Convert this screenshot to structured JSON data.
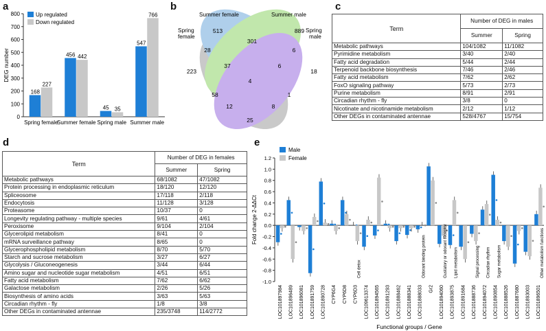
{
  "panel_labels": {
    "a": "a",
    "b": "b",
    "c": "c",
    "d": "d",
    "e": "e"
  },
  "chart_data": [
    {
      "type": "bar",
      "panel": "a",
      "ylabel": "DEG number",
      "xlabel": "",
      "ylim": [
        0,
        800
      ],
      "yticks": [
        0,
        100,
        200,
        300,
        400,
        500,
        600,
        700,
        800
      ],
      "categories": [
        "Spring female",
        "Summer female",
        "Spring male",
        "Summer male"
      ],
      "series": [
        {
          "name": "Up regulated",
          "color": "#1e7fd6",
          "values": [
            168,
            456,
            45,
            547
          ]
        },
        {
          "name": "Down regulated",
          "color": "#c8c8c8",
          "values": [
            227,
            442,
            35,
            766
          ]
        }
      ]
    },
    {
      "type": "bar",
      "panel": "e",
      "ylabel": "Fold change 2-ΔΔCt",
      "xlabel": "Functional groups / Gene",
      "ylim": [
        -1.0,
        1.2
      ],
      "yticks": [
        -1.0,
        -0.8,
        -0.6,
        -0.4,
        -0.2,
        0.0,
        0.2,
        0.4,
        0.6,
        0.8,
        1.0,
        1.2
      ],
      "categories": [
        "LOC101897984",
        "LOC101896489",
        "LOC101896081",
        "LOC101891759",
        "LOC101890728",
        "CYP6G4",
        "CYP6D8",
        "CYP6D3",
        "LOC109613374",
        "LOC101894565",
        "LOC101891293",
        "LOC101888462",
        "LOC101888341",
        "LOC101888033",
        "Gr2",
        "LOC101894060",
        "LOC101893875",
        "LOC101891684",
        "LOC101888736",
        "LOC101894072",
        "LOC101890854",
        "LOC101888526",
        "LOC101887680",
        "LOC101893003",
        "LOC101896501"
      ],
      "series": [
        {
          "name": "Male",
          "color": "#1e7fd6",
          "values": [
            -0.3,
            0.45,
            -0.03,
            -0.85,
            0.78,
            0.03,
            0.45,
            0.0,
            -0.38,
            -0.18,
            0.03,
            -0.28,
            -0.17,
            -0.07,
            1.05,
            -0.33,
            -0.35,
            -0.38,
            -0.15,
            0.28,
            0.9,
            -0.28,
            -0.68,
            -0.47,
            0.2
          ]
        },
        {
          "name": "Female",
          "color": "#c8c8c8",
          "values": [
            -0.05,
            -0.6,
            -0.1,
            0.15,
            0.05,
            -0.1,
            0.2,
            -0.28,
            0.1,
            0.85,
            -0.05,
            -0.05,
            -0.05,
            0.0,
            0.8,
            -0.18,
            0.45,
            -0.6,
            -0.28,
            0.38,
            0.1,
            -0.38,
            -0.1,
            -0.55,
            0.67
          ]
        }
      ],
      "annotations": [
        {
          "text": "Cell detox",
          "after_index": 7
        },
        {
          "text": "Odorant binding protein",
          "after_index": 13
        },
        {
          "text": "Gustatory or odorant receptor",
          "after_index": 15
        },
        {
          "text": "Lipid metabolism",
          "after_index": 16
        },
        {
          "text": "Signal processing",
          "after_index": 18
        },
        {
          "text": "Circadian rhythm",
          "after_index": 19
        },
        {
          "text": "Sugar metabolism",
          "after_index": 20
        },
        {
          "text": "Other metabolism functions",
          "after_index": 24
        }
      ]
    }
  ],
  "venn": {
    "labels": {
      "spring_female": "Spring female",
      "summer_female": "Summer female",
      "summer_male": "Summer male",
      "spring_male": "Spring male"
    },
    "counts": [
      "513",
      "889",
      "223",
      "18",
      "301",
      "28",
      "6",
      "37",
      "6",
      "58",
      "4",
      "1",
      "12",
      "8",
      "25"
    ]
  },
  "table_c": {
    "term_header": "Term",
    "group_header": "Number of DEG in males",
    "col1": "Summer",
    "col2": "Spring",
    "rows": [
      [
        "Metabolic pathways",
        "104/1082",
        "11/1082"
      ],
      [
        "Pyrimidine metabolism",
        "3/40",
        "2/40"
      ],
      [
        "Fatty acid degradation",
        "5/44",
        "2/44"
      ],
      [
        "Terpenoid backbone biosynthesis",
        "7/46",
        "2/46"
      ],
      [
        "Fatty acid metabolism",
        "7/62",
        "2/62"
      ],
      [
        "FoxO signaling pathway",
        "5/73",
        "2/73"
      ],
      [
        "Purine metabolism",
        "8/91",
        "2/91"
      ],
      [
        "Circadian rhythm - fly",
        "3/8",
        "0"
      ],
      [
        "Nicotinate and nicotinamide metabolism",
        "2/12",
        "1/12"
      ],
      [
        "Other DEGs in contaminated antennae",
        "528/4767",
        "15/754"
      ]
    ]
  },
  "table_d": {
    "term_header": "Term",
    "group_header": "Number of DEG in females",
    "col1": "Summer",
    "col2": "Spring",
    "rows": [
      [
        "Metabolic pathways",
        "68/1082",
        "47/1082"
      ],
      [
        "Protein processing in endoplasmic reticulum",
        "18/120",
        "12/120"
      ],
      [
        "Spliceosome",
        "17/118",
        "2/118"
      ],
      [
        "Endocytosis",
        "11/128",
        "3/128"
      ],
      [
        "Proteasome",
        "10/37",
        "0"
      ],
      [
        "Longevity regulating pathway - multiple species",
        "9/61",
        "4/61"
      ],
      [
        "Peroxisome",
        "9/104",
        "2/104"
      ],
      [
        "Glycerolipid metabolism",
        "8/41",
        "0"
      ],
      [
        "mRNA surveillance pathway",
        "8/65",
        "0"
      ],
      [
        "Glycerophospholipid metabolism",
        "8/70",
        "5/70"
      ],
      [
        "Starch and sucrose metabolism",
        "3/27",
        "6/27"
      ],
      [
        "Glycolysis / Gluconeogenesis",
        "3/44",
        "6/44"
      ],
      [
        "Amino sugar and nucleotide sugar metabolism",
        "4/51",
        "6/51"
      ],
      [
        "Fatty acid metabolism",
        "7/62",
        "6/62"
      ],
      [
        "Galactose metabolism",
        "2/26",
        "5/26"
      ],
      [
        "Biosynthesis of amino acids",
        "3/63",
        "5/63"
      ],
      [
        "Circadian rhythm - fly",
        "1/8",
        "3/8"
      ],
      [
        "Other DEGs in contaminated antennae",
        "235/3748",
        "114/2772"
      ]
    ]
  }
}
